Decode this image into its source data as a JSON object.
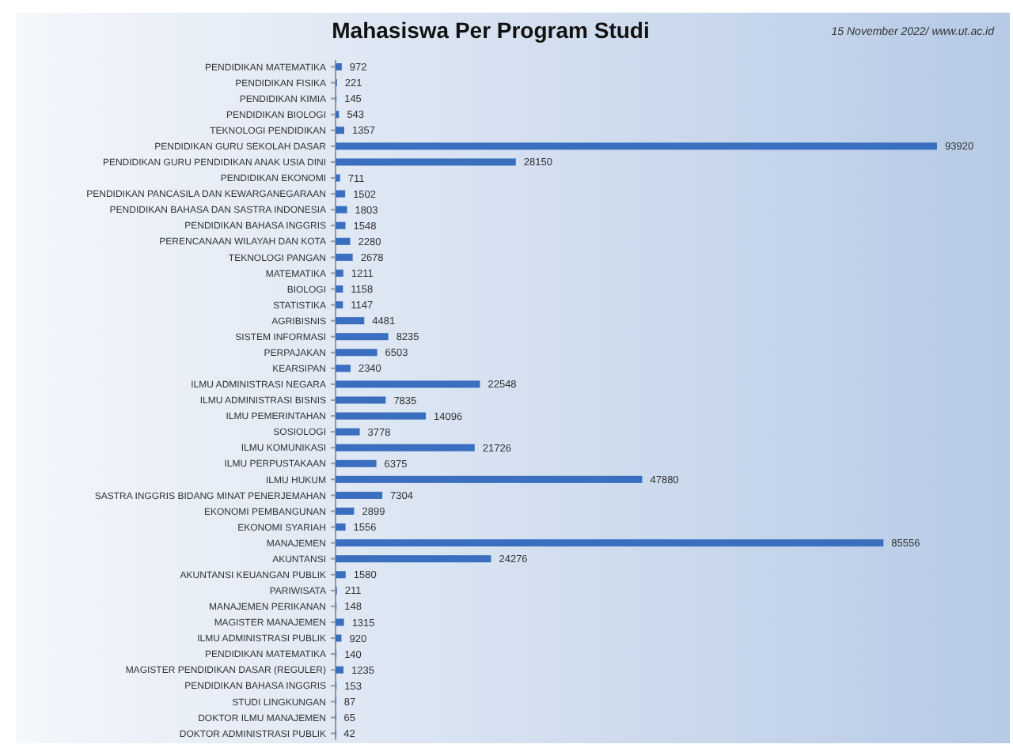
{
  "chart_data": {
    "type": "bar",
    "orientation": "horizontal",
    "title": "Mahasiswa Per Program Studi",
    "annotations": [
      "15 November 2022/ www.ut.ac.id"
    ],
    "categories": [
      "PENDIDIKAN MATEMATIKA",
      "PENDIDIKAN FISIKA",
      "PENDIDIKAN KIMIA",
      "PENDIDIKAN BIOLOGI",
      "TEKNOLOGI PENDIDIKAN",
      "PENDIDIKAN GURU SEKOLAH DASAR",
      "PENDIDIKAN GURU PENDIDIKAN ANAK USIA DINI",
      "PENDIDIKAN EKONOMI",
      "PENDIDIKAN PANCASILA DAN KEWARGANEGARAAN",
      "PENDIDIKAN BAHASA DAN SASTRA INDONESIA",
      "PENDIDIKAN BAHASA INGGRIS",
      "PERENCANAAN WILAYAH DAN KOTA",
      "TEKNOLOGI PANGAN",
      "MATEMATIKA",
      "BIOLOGI",
      "STATISTIKA",
      "AGRIBISNIS",
      "SISTEM INFORMASI",
      "PERPAJAKAN",
      "KEARSIPAN",
      "ILMU ADMINISTRASI NEGARA",
      "ILMU ADMINISTRASI BISNIS",
      "ILMU PEMERINTAHAN",
      "SOSIOLOGI",
      "ILMU KOMUNIKASI",
      "ILMU PERPUSTAKAAN",
      "ILMU HUKUM",
      "SASTRA INGGRIS BIDANG MINAT PENERJEMAHAN",
      "EKONOMI PEMBANGUNAN",
      "EKONOMI SYARIAH",
      "MANAJEMEN",
      "AKUNTANSI",
      "AKUNTANSI KEUANGAN PUBLIK",
      "PARIWISATA",
      "MANAJEMEN PERIKANAN",
      "MAGISTER MANAJEMEN",
      "ILMU ADMINISTRASI PUBLIK",
      "PENDIDIKAN MATEMATIKA",
      "MAGISTER PENDIDIKAN DASAR (REGULER)",
      "PENDIDIKAN BAHASA INGGRIS",
      "STUDI LINGKUNGAN",
      "DOKTOR ILMU MANAJEMEN",
      "DOKTOR ADMINISTRASI PUBLIK"
    ],
    "values": [
      972,
      221,
      145,
      543,
      1357,
      93920,
      28150,
      711,
      1502,
      1803,
      1548,
      2280,
      2678,
      1211,
      1158,
      1147,
      4481,
      8235,
      6503,
      2340,
      22548,
      7835,
      14096,
      3778,
      21726,
      6375,
      47880,
      7304,
      2899,
      1556,
      85556,
      24276,
      1580,
      211,
      148,
      1315,
      920,
      140,
      1235,
      153,
      87,
      65,
      42
    ],
    "color": "#3a6fc0",
    "data_labels": true
  }
}
